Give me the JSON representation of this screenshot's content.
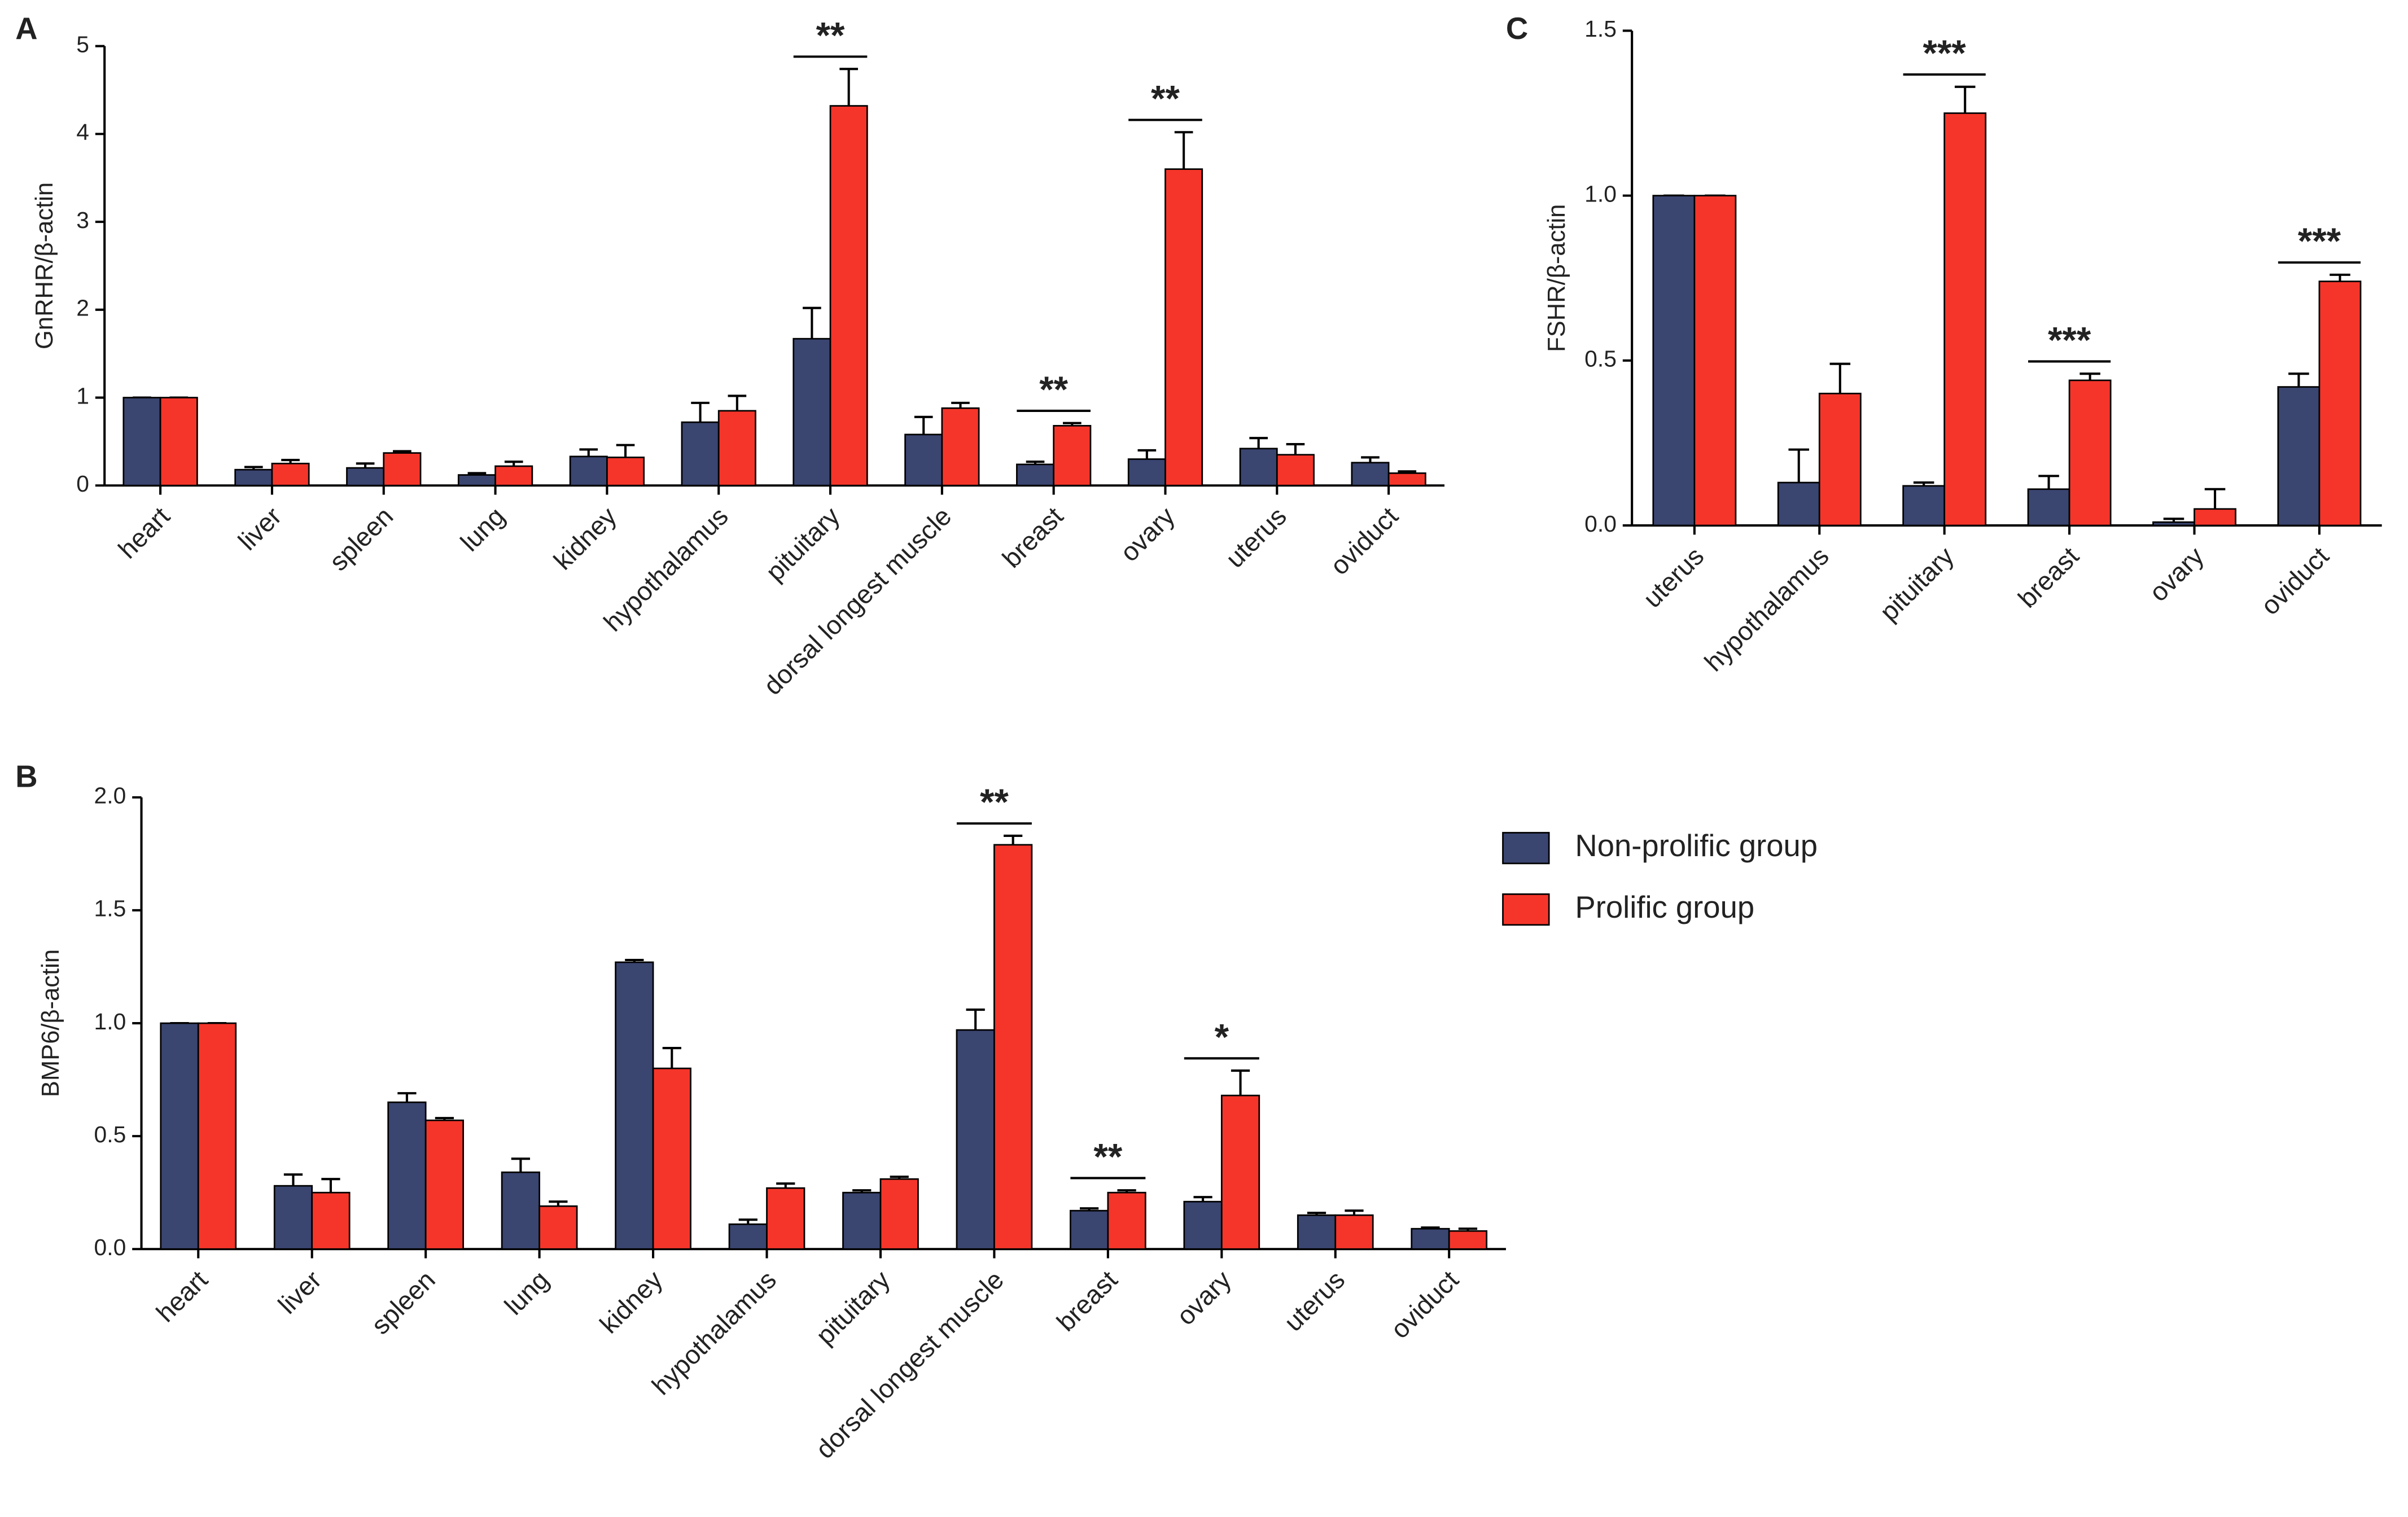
{
  "chart_data": [
    {
      "type": "bar",
      "label": "A",
      "ylabel": "GnRHR/β-actin",
      "categories": [
        "heart",
        "liver",
        "spleen",
        "lung",
        "kidney",
        "hypothalamus",
        "pituitary",
        "dorsal longest muscle",
        "breast",
        "ovary",
        "uterus",
        "oviduct"
      ],
      "series": [
        {
          "name": "Non-prolific group",
          "color": "#3a4570",
          "values": [
            1.0,
            0.18,
            0.2,
            0.12,
            0.33,
            0.72,
            1.67,
            0.58,
            0.24,
            0.3,
            0.42,
            0.26
          ],
          "errors": [
            0,
            0.03,
            0.05,
            0.02,
            0.08,
            0.22,
            0.35,
            0.2,
            0.03,
            0.1,
            0.12,
            0.06
          ]
        },
        {
          "name": "Prolific group",
          "color": "#f5352a",
          "values": [
            1.0,
            0.25,
            0.37,
            0.22,
            0.32,
            0.85,
            4.32,
            0.88,
            0.68,
            3.6,
            0.35,
            0.14
          ],
          "errors": [
            0,
            0.04,
            0.02,
            0.05,
            0.14,
            0.17,
            0.42,
            0.06,
            0.03,
            0.42,
            0.12,
            0.02
          ]
        }
      ],
      "ylim": [
        0,
        5
      ],
      "yticks": [
        0,
        1,
        2,
        3,
        4,
        5
      ],
      "annotations": [
        {
          "text": "**",
          "category": "pituitary"
        },
        {
          "text": "**",
          "category": "breast"
        },
        {
          "text": "**",
          "category": "ovary"
        }
      ]
    },
    {
      "type": "bar",
      "label": "B",
      "ylabel": "BMP6/β-actin",
      "legend": "right",
      "categories": [
        "heart",
        "liver",
        "spleen",
        "lung",
        "kidney",
        "hypothalamus",
        "pituitary",
        "dorsal longest muscle",
        "breast",
        "ovary",
        "uterus",
        "oviduct"
      ],
      "series": [
        {
          "name": "Non-prolific group",
          "color": "#3a4570",
          "values": [
            1.0,
            0.28,
            0.65,
            0.34,
            1.27,
            0.11,
            0.25,
            0.97,
            0.17,
            0.21,
            0.15,
            0.09
          ],
          "errors": [
            0,
            0.05,
            0.04,
            0.06,
            0.01,
            0.02,
            0.01,
            0.09,
            0.01,
            0.02,
            0.01,
            0.005
          ]
        },
        {
          "name": "Prolific group",
          "color": "#f5352a",
          "values": [
            1.0,
            0.25,
            0.57,
            0.19,
            0.8,
            0.27,
            0.31,
            1.79,
            0.25,
            0.68,
            0.15,
            0.08
          ],
          "errors": [
            0,
            0.06,
            0.01,
            0.02,
            0.09,
            0.02,
            0.01,
            0.04,
            0.01,
            0.11,
            0.02,
            0.01
          ]
        }
      ],
      "ylim": [
        0,
        2
      ],
      "yticks": [
        {
          "value": 0,
          "label": "0.0"
        },
        {
          "value": 0.5,
          "label": "0.5"
        },
        {
          "value": 1,
          "label": "1.0"
        },
        {
          "value": 1.5,
          "label": "1.5"
        },
        {
          "value": 2,
          "label": "2.0"
        }
      ],
      "annotations": [
        {
          "text": "**",
          "category": "dorsal longest muscle"
        },
        {
          "text": "**",
          "category": "breast"
        },
        {
          "text": "*",
          "category": "ovary"
        }
      ]
    },
    {
      "type": "bar",
      "label": "C",
      "ylabel": "FSHR/β-actin",
      "categories": [
        "uterus",
        "hypothalamus",
        "pituitary",
        "breast",
        "ovary",
        "oviduct"
      ],
      "series": [
        {
          "name": "Non-prolific group",
          "color": "#3a4570",
          "values": [
            1.0,
            0.13,
            0.12,
            0.11,
            0.01,
            0.42
          ],
          "errors": [
            0,
            0.1,
            0.01,
            0.04,
            0.01,
            0.04
          ]
        },
        {
          "name": "Prolific group",
          "color": "#f5352a",
          "values": [
            1.0,
            0.4,
            1.25,
            0.44,
            0.05,
            0.74
          ],
          "errors": [
            0,
            0.09,
            0.08,
            0.02,
            0.06,
            0.02
          ]
        }
      ],
      "ylim": [
        0,
        1.5
      ],
      "yticks": [
        {
          "value": 0,
          "label": "0.0"
        },
        {
          "value": 0.5,
          "label": "0.5"
        },
        {
          "value": 1,
          "label": "1.0"
        },
        {
          "value": 1.5,
          "label": "1.5"
        }
      ],
      "annotations": [
        {
          "text": "***",
          "category": "pituitary"
        },
        {
          "text": "***",
          "category": "breast"
        },
        {
          "text": "***",
          "category": "oviduct"
        }
      ]
    }
  ]
}
